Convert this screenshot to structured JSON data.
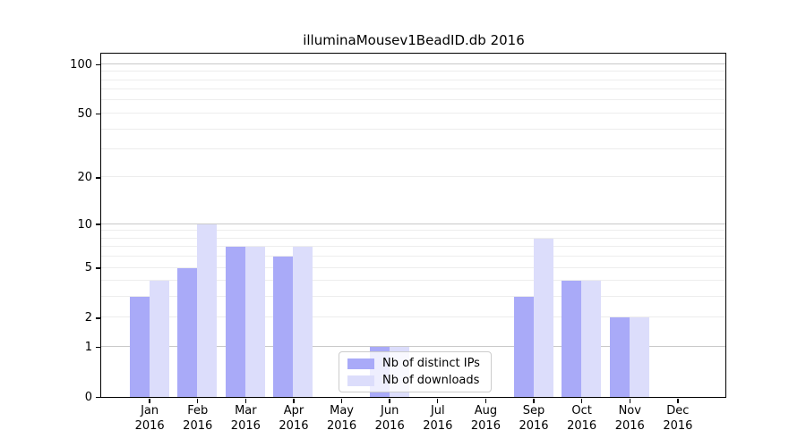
{
  "chart_data": {
    "type": "bar",
    "title": "illuminaMousev1BeadID.db 2016",
    "categories": [
      "Jan\n2016",
      "Feb\n2016",
      "Mar\n2016",
      "Apr\n2016",
      "May\n2016",
      "Jun\n2016",
      "Jul\n2016",
      "Aug\n2016",
      "Sep\n2016",
      "Oct\n2016",
      "Nov\n2016",
      "Dec\n2016"
    ],
    "series": [
      {
        "name": "Nb of distinct IPs",
        "color": "#a9aaf8",
        "values": [
          3,
          5,
          7,
          6,
          0,
          1,
          0,
          0,
          3,
          4,
          2,
          0
        ]
      },
      {
        "name": "Nb of downloads",
        "color": "#dcddfb",
        "values": [
          4,
          10,
          7,
          7,
          0,
          1,
          0,
          0,
          8,
          4,
          2,
          0
        ]
      }
    ],
    "xlabel": "",
    "ylabel": "",
    "yscale": "log1p",
    "ylim": [
      0,
      116
    ],
    "yticks": [
      100,
      50,
      20,
      10,
      5,
      2,
      1,
      0
    ],
    "ytick_labels": [
      "100",
      "50",
      "20",
      "10",
      "5",
      "2",
      "1",
      "0"
    ],
    "grid": {
      "on": true,
      "major_values": [
        1,
        10,
        100
      ],
      "minor_values": [
        2,
        3,
        4,
        5,
        6,
        7,
        8,
        9,
        20,
        30,
        40,
        50,
        60,
        70,
        80,
        90
      ],
      "major_color": "#c9c9c9",
      "minor_color": "#ededed"
    },
    "legend": {
      "position": "lower center",
      "frame_color": "#cccccc"
    },
    "axis_color": "#000000"
  }
}
